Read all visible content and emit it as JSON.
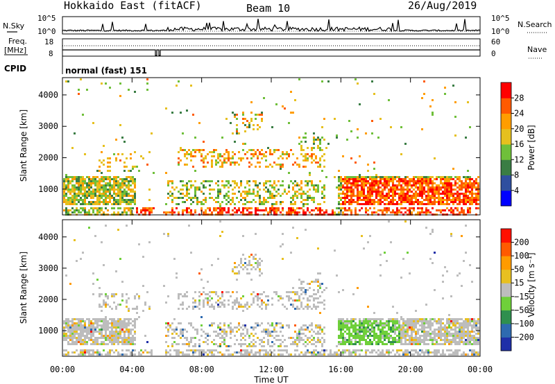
{
  "header": {
    "radar": "Hokkaido East (fitACF)",
    "beam": "Beam 10",
    "date": "26/Aug/2019"
  },
  "noise_panel": {
    "left_label": "N.Sky",
    "right_label": "N.Search",
    "ticks": [
      "10^5",
      "10^0"
    ]
  },
  "freq_panel": {
    "label_line1": "Freq.",
    "label_line2": "[MHz]",
    "left_ticks": [
      "18",
      "8"
    ],
    "right_ticks": [
      "60",
      "0"
    ],
    "right_label": "Nave"
  },
  "cpid": {
    "label": "CPID",
    "value": "normal (fast) 151"
  },
  "x_axis": {
    "label": "Time UT",
    "ticks": [
      "00:00",
      "04:00",
      "08:00",
      "12:00",
      "16:00",
      "20:00",
      "00:00"
    ]
  },
  "chart_data": [
    {
      "type": "heatmap",
      "name": "power",
      "ylabel": "Slant Range [km]",
      "yticks": [
        "4000",
        "3000",
        "2000",
        "1000"
      ],
      "y_values": [
        4000,
        3000,
        2000,
        1000
      ],
      "ylim": [
        180,
        4550
      ],
      "xlim_hours": [
        0,
        24
      ],
      "colorbar": {
        "label": "Power [dB]",
        "ticks": [
          "28",
          "24",
          "20",
          "16",
          "12",
          "8",
          "4"
        ],
        "colors": [
          "#0000ff",
          "#2f4f9f",
          "#3a7d44",
          "#6fbf3a",
          "#e6c01e",
          "#ff9d00",
          "#ff5a00",
          "#ff0000"
        ]
      }
    },
    {
      "type": "heatmap",
      "name": "velocity",
      "ylabel": "Slant Range [km]",
      "yticks": [
        "4000",
        "3000",
        "2000",
        "1000"
      ],
      "y_values": [
        4000,
        3000,
        2000,
        1000
      ],
      "ylim": [
        180,
        4550
      ],
      "xlim_hours": [
        0,
        24
      ],
      "colorbar": {
        "label": "Velocity [m s⁻¹]",
        "ticks": [
          "200",
          "100",
          "50",
          "15",
          "−15",
          "−50",
          "−100",
          "−200"
        ],
        "colors": [
          "#1f2fa8",
          "#2e6ab0",
          "#2f8f4e",
          "#6fd03a",
          "#bdbdbd",
          "#e8c020",
          "#ff9b00",
          "#ff5a00",
          "#ff1000"
        ]
      }
    }
  ]
}
